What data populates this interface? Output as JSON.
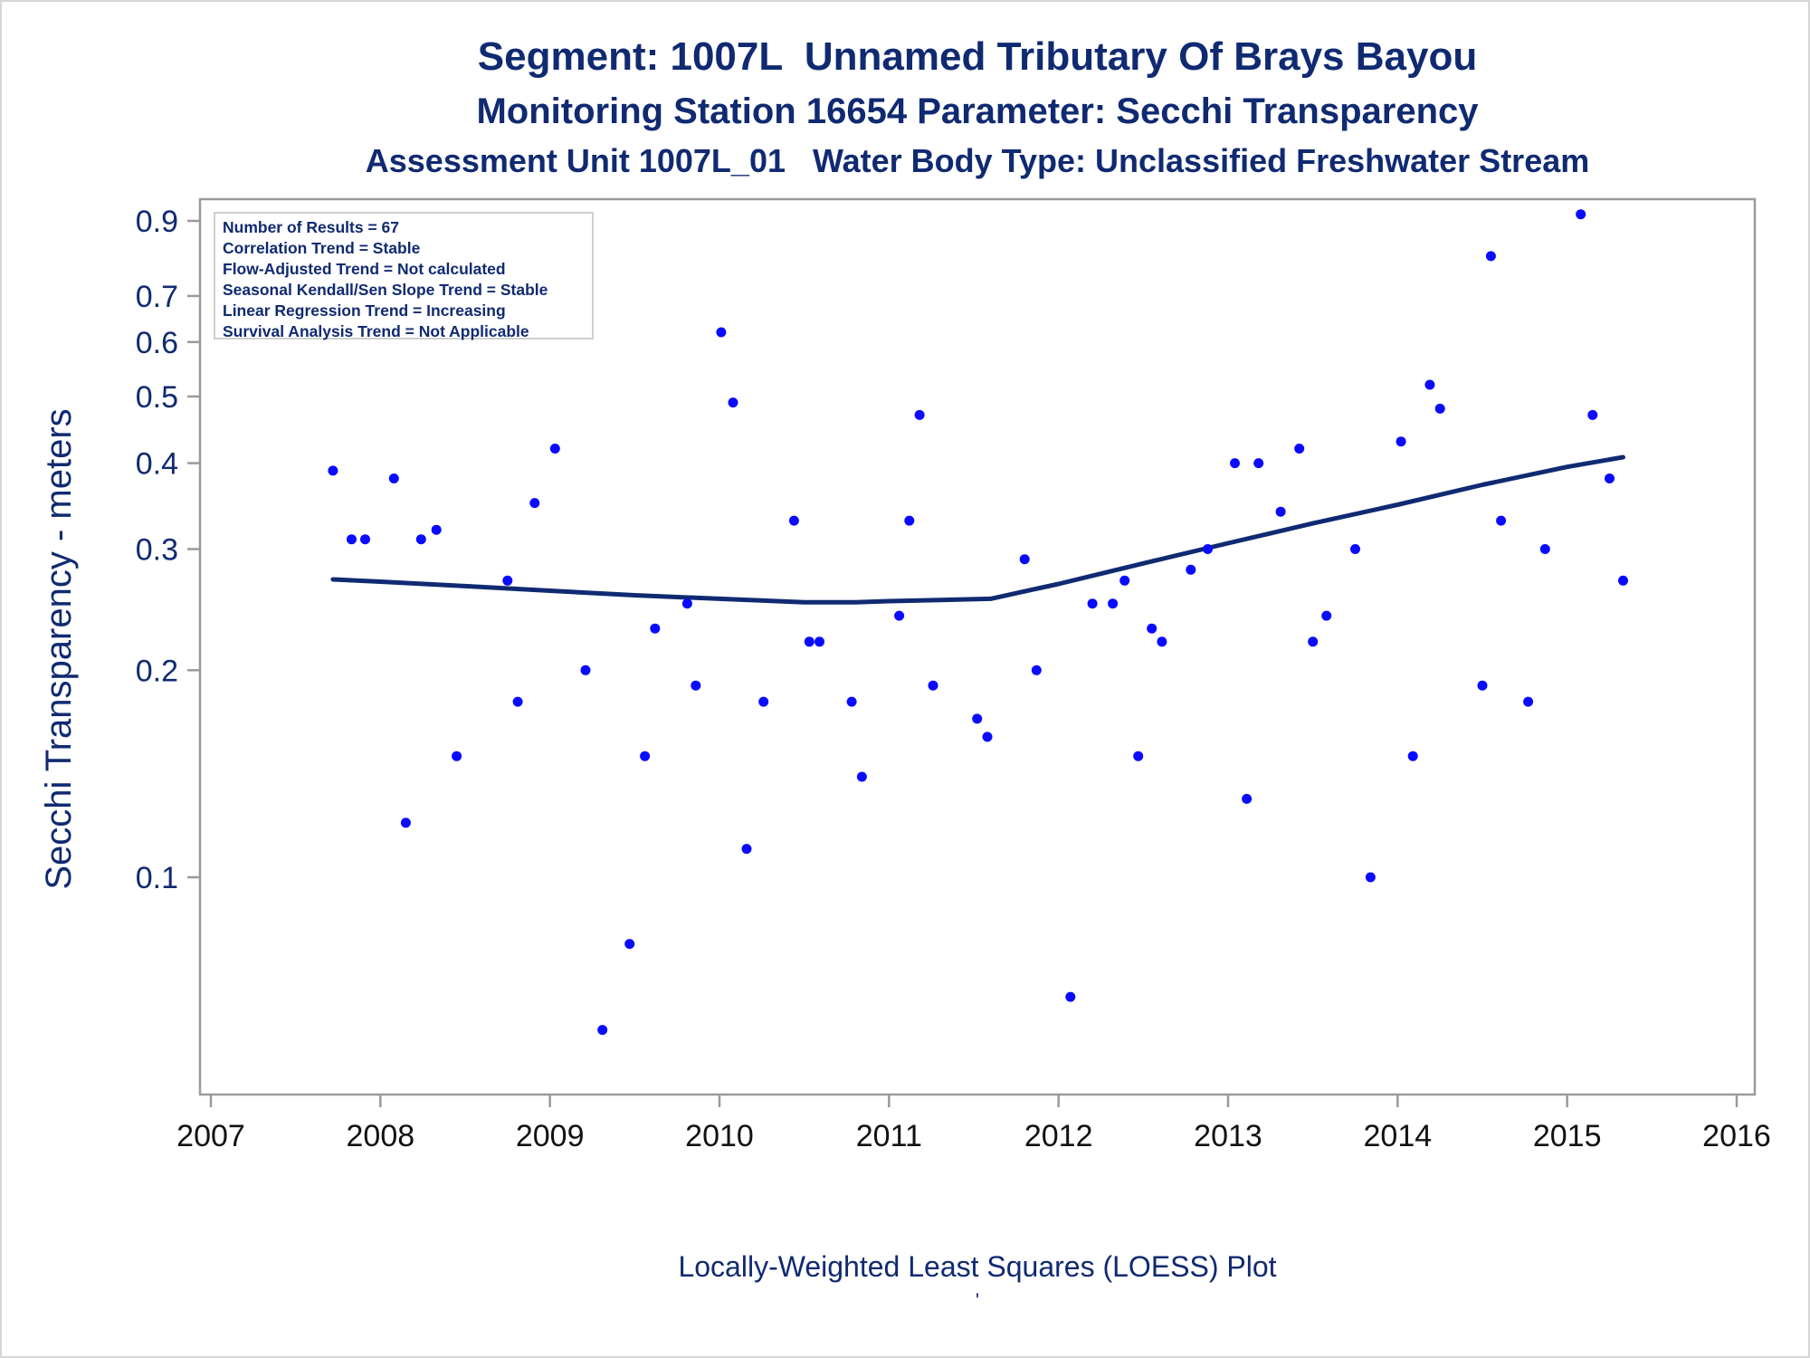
{
  "titles": {
    "line1": "Segment: 1007L  Unnamed Tributary Of Brays Bayou",
    "line2": "Monitoring Station 16654 Parameter: Secchi Transparency",
    "line3": "Assessment Unit 1007L_01   Water Body Type: Unclassified Freshwater Stream"
  },
  "stats": [
    "Number of Results = 67",
    "Correlation Trend = Stable",
    "Flow-Adjusted Trend = Not calculated",
    "Seasonal Kendall/Sen Slope Trend = Stable",
    "Linear Regression Trend = Increasing",
    "Survival Analysis Trend = Not Applicable"
  ],
  "footnote": {
    "line1": "Locally-Weighted Least Squares (LOESS) Plot",
    "line2": "'"
  },
  "colors": {
    "title": "#102a72",
    "points": "#0a0aff",
    "loess": "#102a72",
    "axis": "#9a9a9a"
  },
  "chart_data": {
    "type": "scatter",
    "title": "Segment: 1007L  Unnamed Tributary Of Brays Bayou",
    "xlabel": "",
    "ylabel": "Secchi Transparency - meters",
    "xlim": [
      2007,
      2016
    ],
    "ylim": [
      0.06,
      0.93
    ],
    "yscale": "log",
    "grid": false,
    "x_ticks": [
      2007,
      2008,
      2009,
      2010,
      2011,
      2012,
      2013,
      2014,
      2015,
      2016
    ],
    "y_ticks": [
      0.1,
      0.2,
      0.3,
      0.4,
      0.5,
      0.6,
      0.7,
      0.9
    ],
    "y_tick_labels": [
      "0.1",
      "0.2",
      "0.3",
      "0.4",
      "0.5",
      "0.6",
      "0.7",
      "0.9"
    ],
    "points": [
      {
        "x": 2007.72,
        "y": 0.39
      },
      {
        "x": 2007.83,
        "y": 0.31
      },
      {
        "x": 2007.91,
        "y": 0.31
      },
      {
        "x": 2008.08,
        "y": 0.38
      },
      {
        "x": 2008.15,
        "y": 0.12
      },
      {
        "x": 2008.24,
        "y": 0.31
      },
      {
        "x": 2008.33,
        "y": 0.32
      },
      {
        "x": 2008.45,
        "y": 0.15
      },
      {
        "x": 2008.75,
        "y": 0.27
      },
      {
        "x": 2008.81,
        "y": 0.18
      },
      {
        "x": 2008.91,
        "y": 0.35
      },
      {
        "x": 2009.03,
        "y": 0.42
      },
      {
        "x": 2009.21,
        "y": 0.2
      },
      {
        "x": 2009.31,
        "y": 0.06
      },
      {
        "x": 2009.47,
        "y": 0.08
      },
      {
        "x": 2009.56,
        "y": 0.15
      },
      {
        "x": 2009.62,
        "y": 0.23
      },
      {
        "x": 2009.81,
        "y": 0.25
      },
      {
        "x": 2009.86,
        "y": 0.19
      },
      {
        "x": 2010.01,
        "y": 0.62
      },
      {
        "x": 2010.08,
        "y": 0.49
      },
      {
        "x": 2010.16,
        "y": 0.11
      },
      {
        "x": 2010.26,
        "y": 0.18
      },
      {
        "x": 2010.44,
        "y": 0.33
      },
      {
        "x": 2010.53,
        "y": 0.22
      },
      {
        "x": 2010.59,
        "y": 0.22
      },
      {
        "x": 2010.78,
        "y": 0.18
      },
      {
        "x": 2010.84,
        "y": 0.14
      },
      {
        "x": 2011.06,
        "y": 0.24
      },
      {
        "x": 2011.12,
        "y": 0.33
      },
      {
        "x": 2011.18,
        "y": 0.47
      },
      {
        "x": 2011.26,
        "y": 0.19
      },
      {
        "x": 2011.52,
        "y": 0.17
      },
      {
        "x": 2011.58,
        "y": 0.16
      },
      {
        "x": 2011.8,
        "y": 0.29
      },
      {
        "x": 2011.87,
        "y": 0.2
      },
      {
        "x": 2012.07,
        "y": 0.067
      },
      {
        "x": 2012.2,
        "y": 0.25
      },
      {
        "x": 2012.32,
        "y": 0.25
      },
      {
        "x": 2012.39,
        "y": 0.27
      },
      {
        "x": 2012.47,
        "y": 0.15
      },
      {
        "x": 2012.55,
        "y": 0.23
      },
      {
        "x": 2012.61,
        "y": 0.22
      },
      {
        "x": 2012.78,
        "y": 0.28
      },
      {
        "x": 2012.88,
        "y": 0.3
      },
      {
        "x": 2013.04,
        "y": 0.4
      },
      {
        "x": 2013.11,
        "y": 0.13
      },
      {
        "x": 2013.18,
        "y": 0.4
      },
      {
        "x": 2013.31,
        "y": 0.34
      },
      {
        "x": 2013.42,
        "y": 0.42
      },
      {
        "x": 2013.5,
        "y": 0.22
      },
      {
        "x": 2013.58,
        "y": 0.24
      },
      {
        "x": 2013.75,
        "y": 0.3
      },
      {
        "x": 2013.84,
        "y": 0.1
      },
      {
        "x": 2014.02,
        "y": 0.43
      },
      {
        "x": 2014.09,
        "y": 0.15
      },
      {
        "x": 2014.19,
        "y": 0.52
      },
      {
        "x": 2014.25,
        "y": 0.48
      },
      {
        "x": 2014.5,
        "y": 0.19
      },
      {
        "x": 2014.55,
        "y": 0.8
      },
      {
        "x": 2014.61,
        "y": 0.33
      },
      {
        "x": 2014.77,
        "y": 0.18
      },
      {
        "x": 2014.87,
        "y": 0.3
      },
      {
        "x": 2015.08,
        "y": 0.92
      },
      {
        "x": 2015.15,
        "y": 0.47
      },
      {
        "x": 2015.25,
        "y": 0.38
      },
      {
        "x": 2015.33,
        "y": 0.27
      }
    ],
    "loess": [
      {
        "x": 2007.72,
        "y": 0.271
      },
      {
        "x": 2008.0,
        "y": 0.269
      },
      {
        "x": 2008.5,
        "y": 0.265
      },
      {
        "x": 2009.0,
        "y": 0.261
      },
      {
        "x": 2009.5,
        "y": 0.257
      },
      {
        "x": 2010.0,
        "y": 0.254
      },
      {
        "x": 2010.5,
        "y": 0.251
      },
      {
        "x": 2010.8,
        "y": 0.251
      },
      {
        "x": 2011.0,
        "y": 0.252
      },
      {
        "x": 2011.3,
        "y": 0.253
      },
      {
        "x": 2011.6,
        "y": 0.254
      },
      {
        "x": 2012.0,
        "y": 0.267
      },
      {
        "x": 2012.5,
        "y": 0.286
      },
      {
        "x": 2013.0,
        "y": 0.306
      },
      {
        "x": 2013.5,
        "y": 0.327
      },
      {
        "x": 2014.0,
        "y": 0.348
      },
      {
        "x": 2014.5,
        "y": 0.372
      },
      {
        "x": 2015.0,
        "y": 0.395
      },
      {
        "x": 2015.33,
        "y": 0.408
      }
    ]
  }
}
